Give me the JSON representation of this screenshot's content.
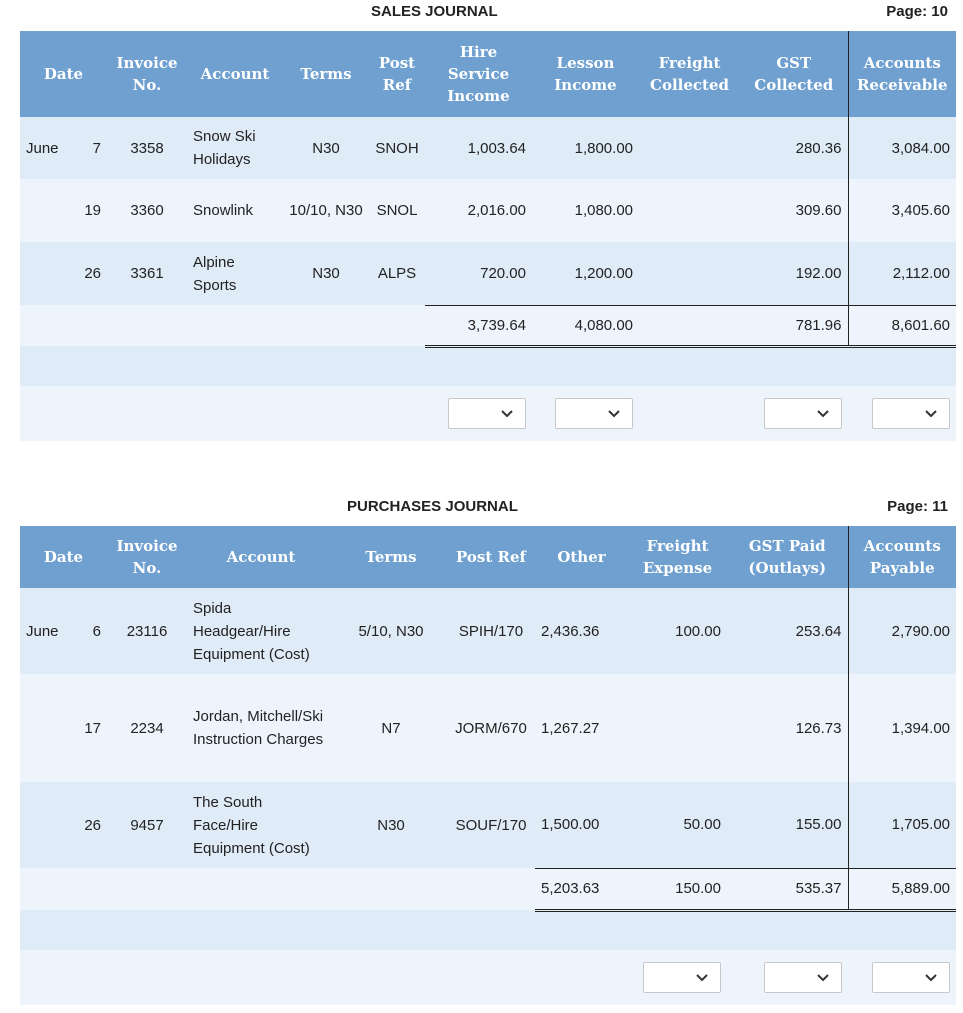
{
  "sales": {
    "title": "SALES JOURNAL",
    "page_label": "Page: 10",
    "headers": [
      "Date",
      "Invoice No.",
      "Account",
      "Terms",
      "Post Ref",
      "Hire Service Income",
      "Lesson Income",
      "Freight Collected",
      "GST Collected",
      "Accounts Receivable"
    ],
    "rows": [
      {
        "month": "June",
        "day": "7",
        "invoice": "3358",
        "account": "Snow Ski Holidays",
        "terms": "N30",
        "postref": "SNOH",
        "hire": "1,003.64",
        "lesson": "1,800.00",
        "freight": "",
        "gst": "280.36",
        "ar": "3,084.00"
      },
      {
        "month": "",
        "day": "19",
        "invoice": "3360",
        "account": "Snowlink",
        "terms": "10/10, N30",
        "postref": "SNOL",
        "hire": "2,016.00",
        "lesson": "1,080.00",
        "freight": "",
        "gst": "309.60",
        "ar": "3,405.60"
      },
      {
        "month": "",
        "day": "26",
        "invoice": "3361",
        "account": "Alpine Sports",
        "terms": "N30",
        "postref": "ALPS",
        "hire": "720.00",
        "lesson": "1,200.00",
        "freight": "",
        "gst": "192.00",
        "ar": "2,112.00"
      }
    ],
    "totals": {
      "hire": "3,739.64",
      "lesson": "4,080.00",
      "gst": "781.96",
      "ar": "8,601.60"
    }
  },
  "purchases": {
    "title": "PURCHASES JOURNAL",
    "page_label": "Page: 11",
    "headers": [
      "Date",
      "Invoice No.",
      "Account",
      "Terms",
      "Post Ref",
      "Other",
      "Freight Expense",
      "GST Paid (Outlays)",
      "Accounts Payable"
    ],
    "rows": [
      {
        "month": "June",
        "day": "6",
        "invoice": "23116",
        "account": "Spida Headgear/Hire Equipment (Cost)",
        "terms": "5/10, N30",
        "postref": "SPIH/170",
        "other": "2,436.36",
        "freight": "100.00",
        "gst": "253.64",
        "ap": "2,790.00"
      },
      {
        "month": "",
        "day": "17",
        "invoice": "2234",
        "account": "Jordan, Mitchell/Ski Instruction Charges",
        "terms": "N7",
        "postref": "JORM/670",
        "other": "1,267.27",
        "freight": "",
        "gst": "126.73",
        "ap": "1,394.00"
      },
      {
        "month": "",
        "day": "26",
        "invoice": "9457",
        "account": "The South Face/Hire Equipment (Cost)",
        "terms": "N30",
        "postref": "SOUF/170",
        "other": "1,500.00",
        "freight": "50.00",
        "gst": "155.00",
        "ap": "1,705.00"
      }
    ],
    "totals": {
      "other": "5,203.63",
      "freight": "150.00",
      "gst": "535.37",
      "ap": "5,889.00"
    }
  },
  "icons": {
    "dropdown": "chevron-down-icon"
  }
}
